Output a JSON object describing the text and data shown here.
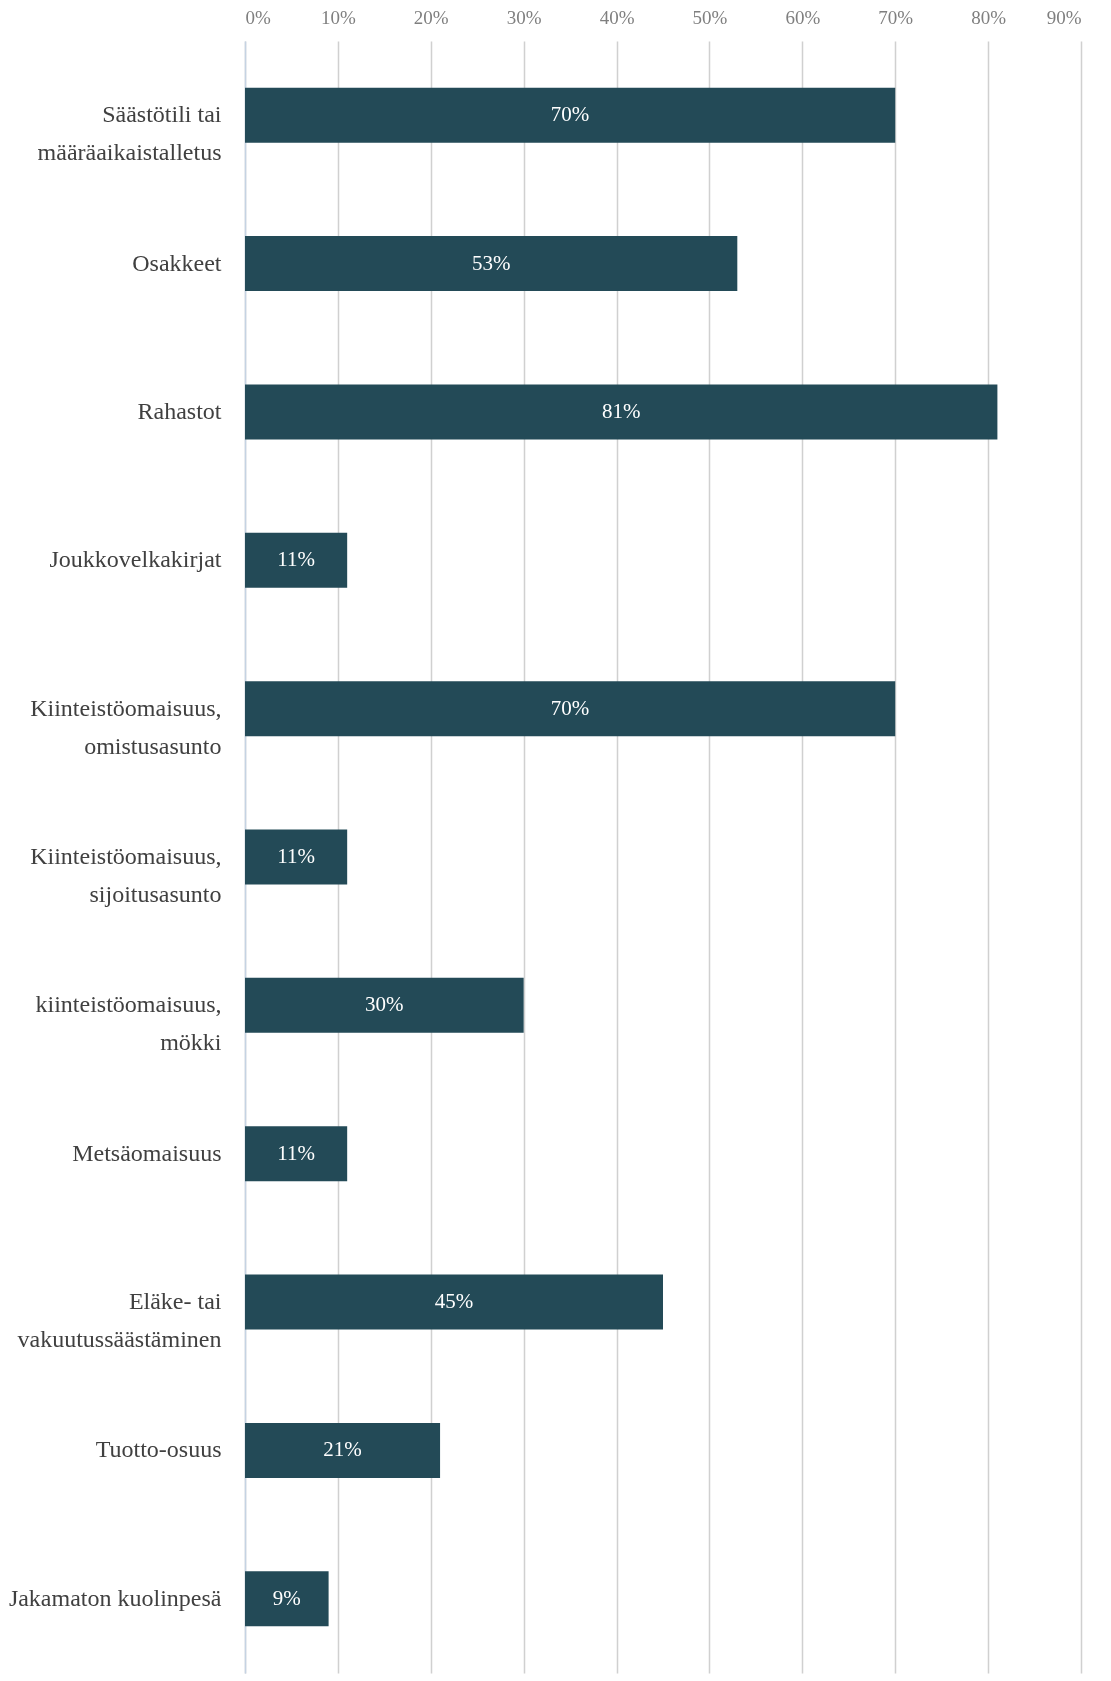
{
  "chart_data": {
    "type": "bar",
    "orientation": "horizontal",
    "categories": [
      "Säästötili tai\nmääräaikaistalletus",
      "Osakkeet",
      "Rahastot",
      "Joukkovelkakirjat",
      "Kiinteistöomaisuus,\nomistusasunto",
      "Kiinteistöomaisuus,\nsijoitusasunto",
      "kiinteistöomaisuus,\nmökki",
      "Metsäomaisuus",
      "Eläke- tai\nvakuutussäästäminen",
      "Tuotto-osuus",
      "Jakamaton kuolinpesä"
    ],
    "values": [
      70,
      53,
      81,
      11,
      70,
      11,
      30,
      11,
      45,
      21,
      9
    ],
    "value_labels": [
      "70%",
      "53%",
      "81%",
      "11%",
      "70%",
      "11%",
      "30%",
      "11%",
      "45%",
      "21%",
      "9%"
    ],
    "color": "#234a57",
    "xlim": [
      0,
      90
    ],
    "xticks": [
      {
        "value": 0,
        "label": "0%"
      },
      {
        "value": 10,
        "label": "10%"
      },
      {
        "value": 20,
        "label": "20%"
      },
      {
        "value": 30,
        "label": "30%"
      },
      {
        "value": 40,
        "label": "40%"
      },
      {
        "value": 50,
        "label": "50%"
      },
      {
        "value": 60,
        "label": "60%"
      },
      {
        "value": 70,
        "label": "70%"
      },
      {
        "value": 80,
        "label": "80%"
      },
      {
        "value": 90,
        "label": "90%"
      }
    ],
    "grid": "x"
  }
}
